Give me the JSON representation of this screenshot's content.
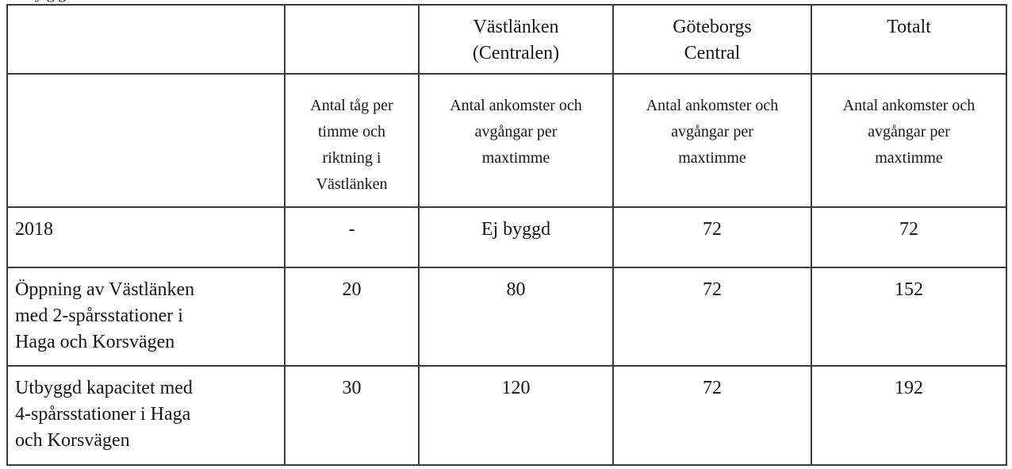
{
  "page": {
    "background": "#ffffff",
    "border_color": "#3b3b3b",
    "text_color": "#161616"
  },
  "clipped_caption_fragment": "ygg",
  "table": {
    "columns": [
      {
        "id": "row-label",
        "header": "",
        "subheader": ""
      },
      {
        "id": "vastlanken-riktning",
        "header": "",
        "subheader": "Antal tåg per\ntimme och\nriktning i\nVästlänken"
      },
      {
        "id": "vastlanken-centralen",
        "header": "Västlänken\n(Centralen)",
        "subheader": "Antal ankomster och\navgångar per\nmaxtimme"
      },
      {
        "id": "goteborgs-central",
        "header": "Göteborgs\nCentral",
        "subheader": "Antal ankomster och\navgångar per\nmaxtimme"
      },
      {
        "id": "totalt",
        "header": "Totalt",
        "subheader": "Antal ankomster och\navgångar per\nmaxtimme"
      }
    ],
    "rows": [
      {
        "label": "2018",
        "values": [
          "-",
          "Ej byggd",
          "72",
          "72"
        ]
      },
      {
        "label": "Öppning av Västlänken\nmed 2-spårsstationer i\nHaga och Korsvägen",
        "values": [
          "20",
          "80",
          "72",
          "152"
        ]
      },
      {
        "label": "Utbyggd kapacitet med\n4-spårsstationer i Haga\noch Korsvägen",
        "values": [
          "30",
          "120",
          "72",
          "192"
        ]
      }
    ]
  }
}
